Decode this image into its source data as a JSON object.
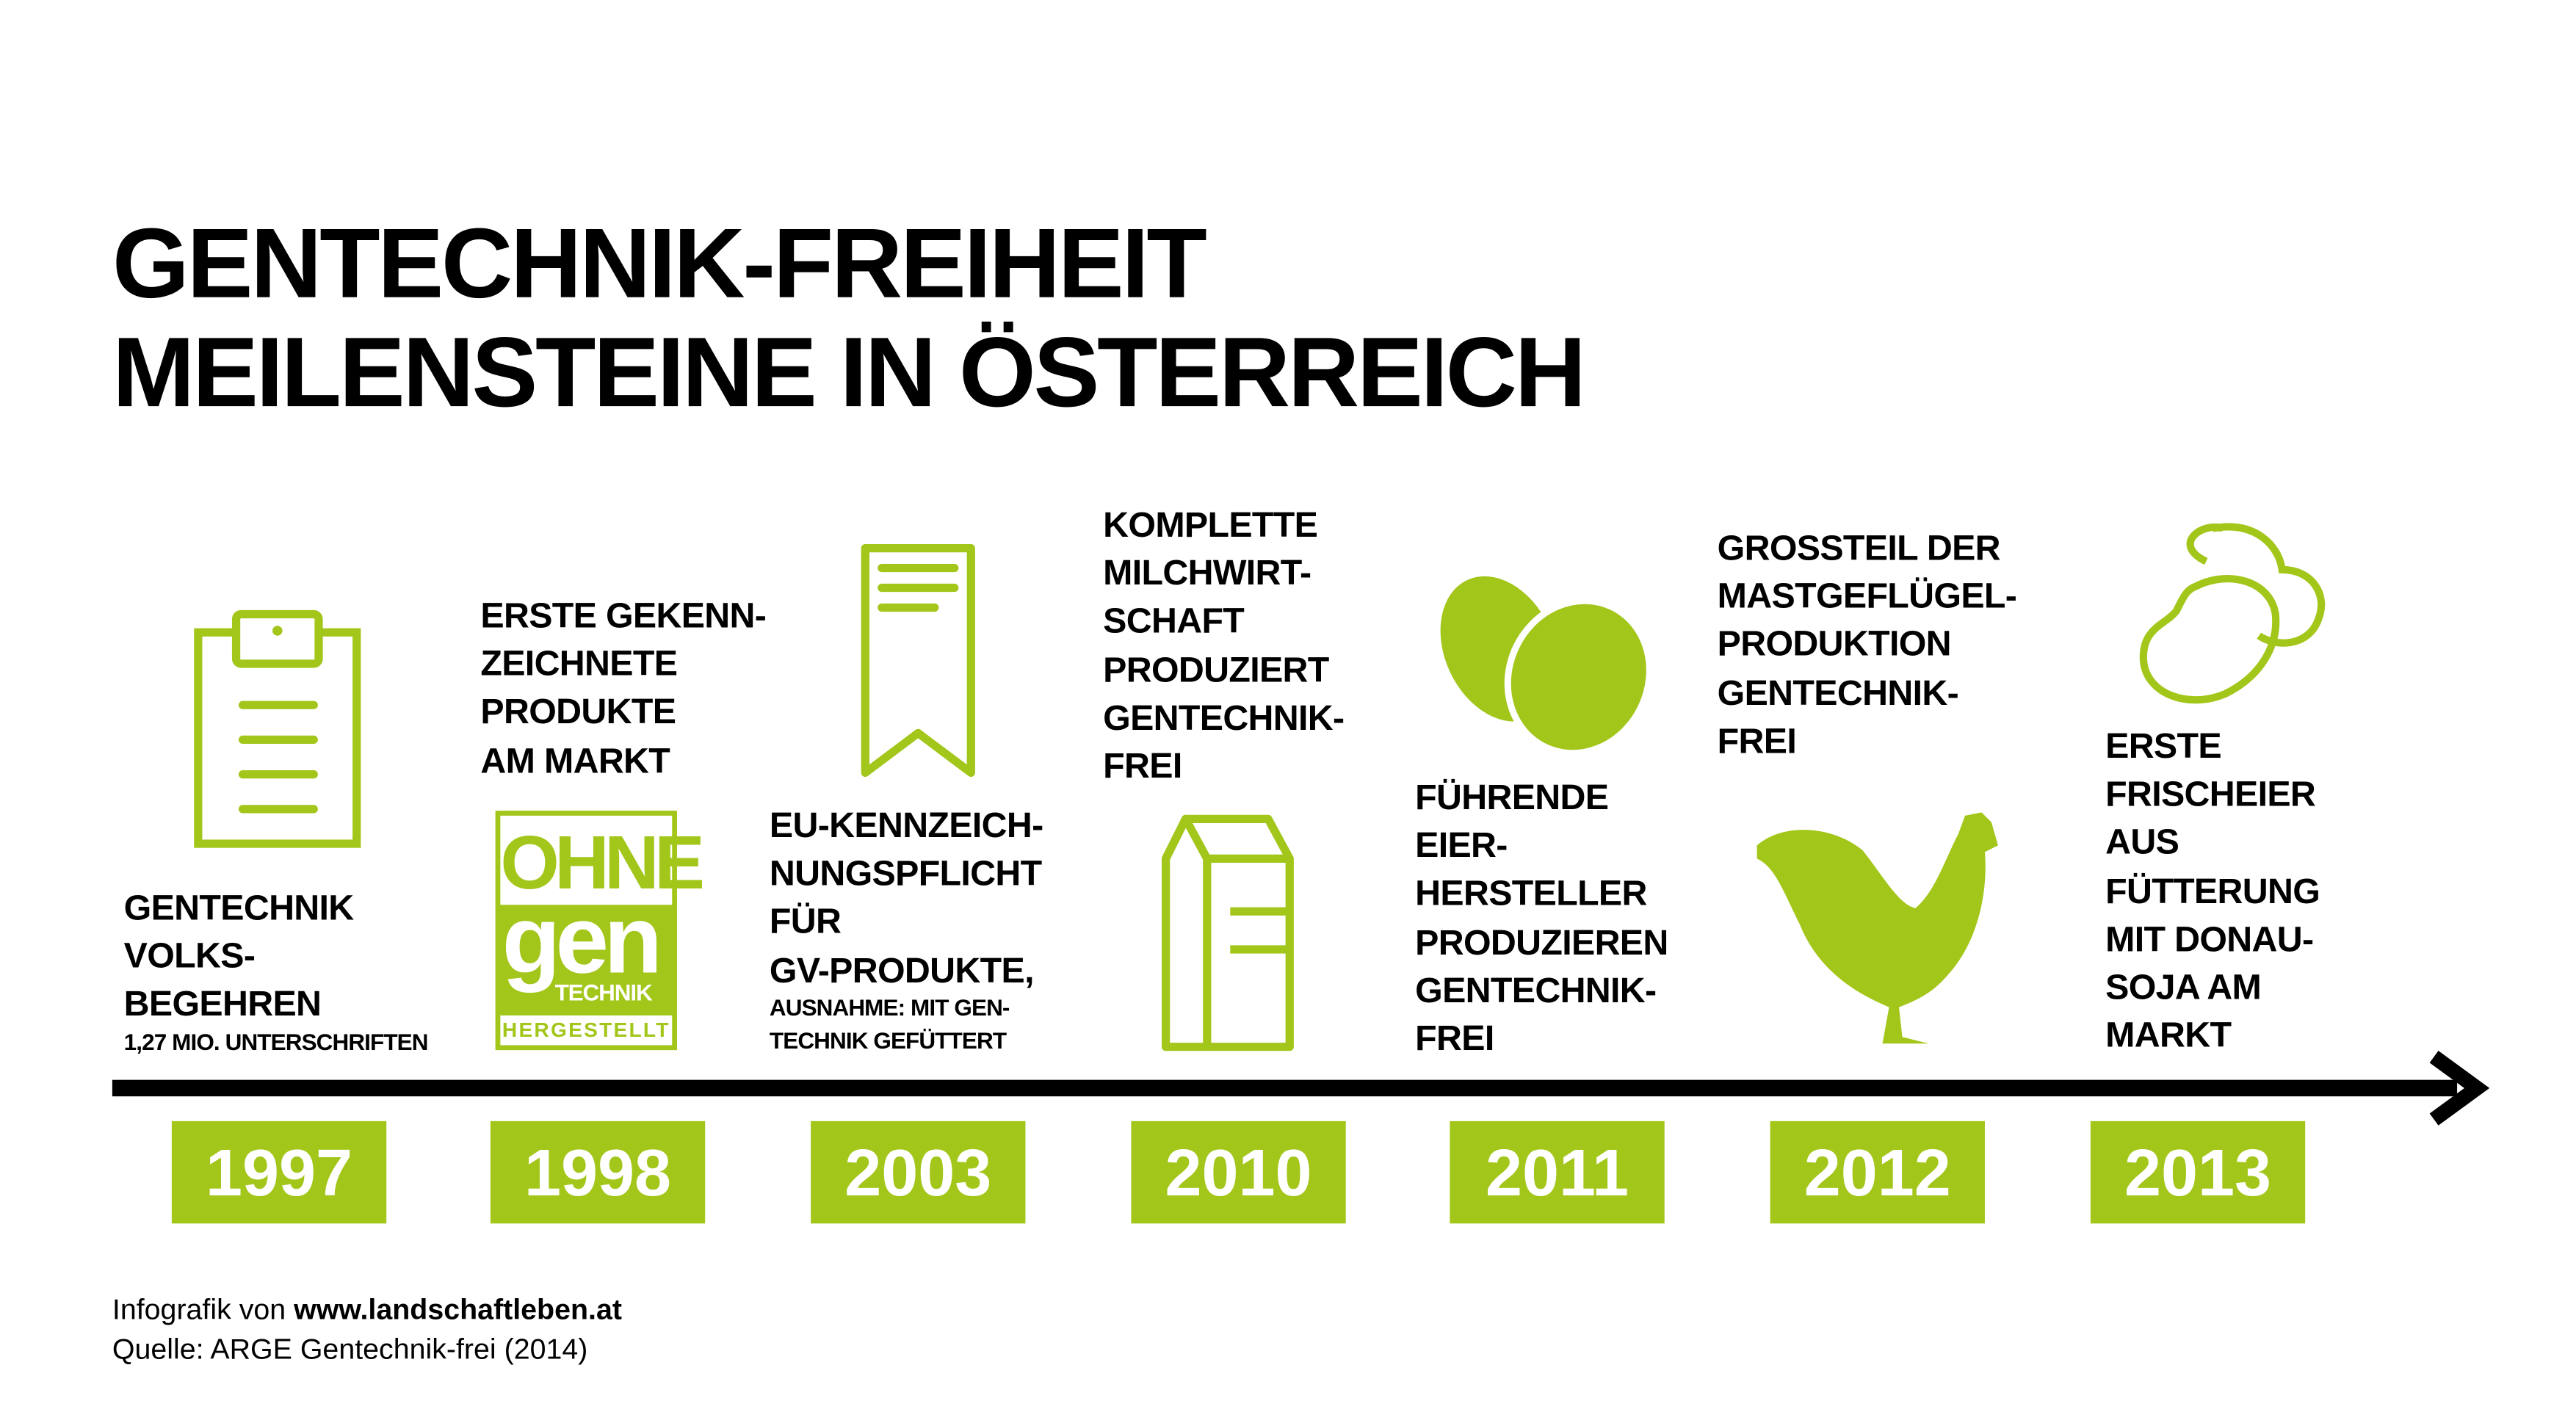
{
  "title": {
    "line1": "GENTECHNIK-FREIHEIT",
    "line2": "MEILENSTEINE IN ÖSTERREICH"
  },
  "accent_color": "#a3c61a",
  "milestones": [
    {
      "year": "1997",
      "icon": "clipboard-icon",
      "lines": [
        "GENTECHNIK",
        "VOLKS-",
        "BEGEHREN"
      ],
      "note": [
        "1,27 MIO. UNTERSCHRIFTEN"
      ]
    },
    {
      "year": "1998",
      "icon": "ohne-gentechnik-logo",
      "lines": [
        "ERSTE GEKENN-",
        "ZEICHNETE",
        "PRODUKTE",
        "AM MARKT"
      ],
      "logo": {
        "top": "OHNE",
        "middle": "gen",
        "sub": "TECHNIK",
        "bottom": "HERGESTELLT"
      }
    },
    {
      "year": "2003",
      "icon": "bookmark-icon",
      "lines": [
        "EU-KENNZEICH-",
        "NUNGSPFLICHT",
        "FÜR",
        "GV-PRODUKTE,"
      ],
      "note": [
        "AUSNAHME: MIT GEN-",
        "TECHNIK GEFÜTTERT"
      ]
    },
    {
      "year": "2010",
      "icon": "milk-carton-icon",
      "lines": [
        "KOMPLETTE",
        "MILCHWIRT-",
        "SCHAFT",
        "PRODUZIERT",
        "GENTECHNIK-",
        "FREI"
      ]
    },
    {
      "year": "2011",
      "icon": "eggs-icon",
      "lines": [
        "FÜHRENDE",
        "EIER-",
        "HERSTELLER",
        "PRODUZIEREN",
        "GENTECHNIK-",
        "FREI"
      ]
    },
    {
      "year": "2012",
      "icon": "chicken-icon",
      "lines": [
        "GROSSTEIL DER",
        "MASTGEFLÜGEL-",
        "PRODUKTION",
        "GENTECHNIK-",
        "FREI"
      ]
    },
    {
      "year": "2013",
      "icon": "soybeans-icon",
      "lines": [
        "ERSTE",
        "FRISCHEIER",
        "AUS",
        "FÜTTERUNG",
        "MIT DONAU-",
        "SOJA AM",
        "MARKT"
      ]
    }
  ],
  "footer": {
    "credit_prefix": "Infografik von",
    "credit_site": "www.landschaftleben.at",
    "source": "Quelle: ARGE Gentechnik-frei (2014)"
  }
}
